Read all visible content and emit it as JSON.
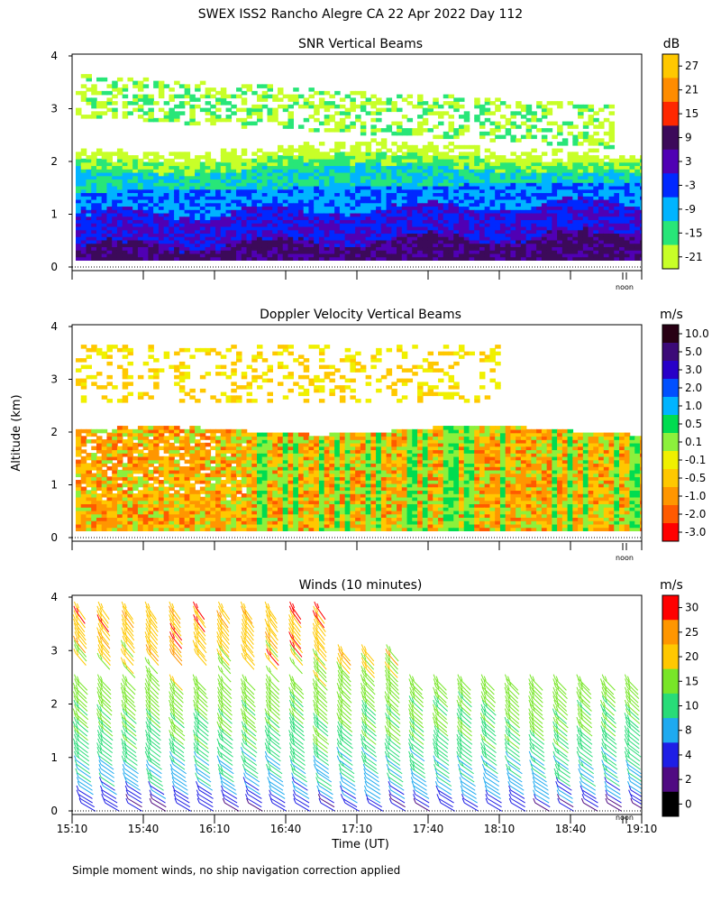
{
  "title": "SWEX ISS2 Rancho Alegre CA  22 Apr 2022 Day 112",
  "ylabel": "Altitude (km)",
  "xlabel": "Time (UT)",
  "noon_label": "noon",
  "footnote": "Simple moment winds, no ship navigation correction applied",
  "chart_data": [
    {
      "type": "heatmap",
      "title": "SNR Vertical Beams",
      "unit": "dB",
      "y_ticks": [
        "0",
        "1",
        "2",
        "3",
        "4"
      ],
      "ylim": [
        0,
        4
      ],
      "colorbar": {
        "labels": [
          "27",
          "21",
          "15",
          "9",
          "3",
          "-3",
          "-9",
          "-15",
          "-21"
        ],
        "colors": [
          "#ffc800",
          "#ff8c00",
          "#ff2800",
          "#3c0a5a",
          "#5000b4",
          "#0028ff",
          "#00b4ff",
          "#28e678",
          "#c8ff28"
        ]
      },
      "description_values": {
        "layers_km": [
          {
            "range": [
              0.1,
              0.6
            ],
            "snr_db": 9
          },
          {
            "range": [
              0.6,
              1.4
            ],
            "snr_db": 0
          },
          {
            "range": [
              1.4,
              2.0
            ],
            "snr_db": -9
          },
          {
            "range": [
              2.0,
              2.3
            ],
            "snr_db": -18
          },
          {
            "range": [
              2.8,
              3.6
            ],
            "snr_db": -20
          }
        ]
      }
    },
    {
      "type": "heatmap",
      "title": "Doppler Velocity Vertical Beams",
      "unit": "m/s",
      "y_ticks": [
        "0",
        "1",
        "2",
        "3",
        "4"
      ],
      "ylim": [
        0,
        4
      ],
      "colorbar": {
        "labels": [
          "10.0",
          "5.0",
          "3.0",
          "2.0",
          "1.0",
          "0.5",
          "0.1",
          "-0.1",
          "-0.5",
          "-1.0",
          "-2.0",
          "-3.0"
        ],
        "colors": [
          "#280014",
          "#3c0a78",
          "#2800c8",
          "#0050ff",
          "#00b4ff",
          "#00dc50",
          "#8cf03c",
          "#f0f000",
          "#ffc800",
          "#ff9600",
          "#ff5a00",
          "#ff0000"
        ]
      }
    },
    {
      "type": "barbs",
      "title": "Winds (10 minutes)",
      "unit": "m/s",
      "y_ticks": [
        "0",
        "1",
        "2",
        "3",
        "4"
      ],
      "ylim": [
        0,
        4
      ],
      "x_ticks": [
        "15:10",
        "15:40",
        "16:10",
        "16:40",
        "17:10",
        "17:40",
        "18:10",
        "18:40",
        "19:10"
      ],
      "colorbar": {
        "labels": [
          "30",
          "25",
          "20",
          "15",
          "10",
          "8",
          "4",
          "2",
          "0"
        ],
        "colors": [
          "#ff0000",
          "#ff9600",
          "#ffc800",
          "#78e628",
          "#28dc78",
          "#1eaaf0",
          "#1e1ee6",
          "#500a82",
          "#000000"
        ]
      },
      "speed_profile": [
        {
          "alt_km": 0.2,
          "speed_ms": 4
        },
        {
          "alt_km": 0.6,
          "speed_ms": 8
        },
        {
          "alt_km": 1.0,
          "speed_ms": 10
        },
        {
          "alt_km": 1.6,
          "speed_ms": 13
        },
        {
          "alt_km": 2.2,
          "speed_ms": 15
        },
        {
          "alt_km": 3.2,
          "speed_ms": 20
        }
      ]
    }
  ]
}
